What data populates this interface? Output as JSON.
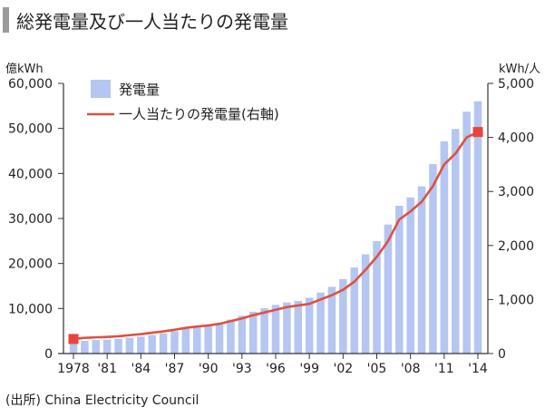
{
  "header": {
    "title": "総発電量及び一人当たりの発電量"
  },
  "source": "(出所) China Electricity Council",
  "colors": {
    "bar": "#b4c6f1",
    "line": "#e0503f",
    "marker": "#e8453a",
    "title_block": "#9a9a9a",
    "axis": "#333333"
  },
  "chart_data": {
    "type": "bar",
    "left_axis_label": "億kWh",
    "right_axis_label": "kWh/人",
    "left_ylim": [
      0,
      60000
    ],
    "right_ylim": [
      0,
      5000
    ],
    "left_ticks": [
      "0",
      "10,000",
      "20,000",
      "30,000",
      "40,000",
      "50,000",
      "60,000"
    ],
    "right_ticks": [
      "0",
      "1,000",
      "2,000",
      "3,000",
      "4,000",
      "5,000"
    ],
    "x_tick_labels": [
      {
        "year": 1978,
        "label": "1978"
      },
      {
        "year": 1981,
        "label": "'81"
      },
      {
        "year": 1984,
        "label": "'84"
      },
      {
        "year": 1987,
        "label": "'87"
      },
      {
        "year": 1990,
        "label": "'90"
      },
      {
        "year": 1993,
        "label": "'93"
      },
      {
        "year": 1996,
        "label": "'96"
      },
      {
        "year": 1999,
        "label": "'99"
      },
      {
        "year": 2002,
        "label": "'02"
      },
      {
        "year": 2005,
        "label": "'05"
      },
      {
        "year": 2008,
        "label": "'08"
      },
      {
        "year": 2011,
        "label": "'11"
      },
      {
        "year": 2014,
        "label": "'14"
      }
    ],
    "legend": {
      "bar_label": "発電量",
      "line_label": "一人当たりの発電量(右軸)"
    },
    "years": [
      1978,
      1979,
      1980,
      1981,
      1982,
      1983,
      1984,
      1985,
      1986,
      1987,
      1988,
      1989,
      1990,
      1991,
      1992,
      1993,
      1994,
      1995,
      1996,
      1997,
      1998,
      1999,
      2000,
      2001,
      2002,
      2003,
      2004,
      2005,
      2006,
      2007,
      2008,
      2009,
      2010,
      2011,
      2012,
      2013,
      2014
    ],
    "series": [
      {
        "name": "発電量",
        "axis": "left",
        "values": [
          2566,
          2820,
          3006,
          3093,
          3277,
          3514,
          3770,
          4107,
          4495,
          4973,
          5452,
          5848,
          6213,
          6775,
          7539,
          8395,
          9281,
          10069,
          10813,
          11356,
          11670,
          12393,
          13556,
          14808,
          16540,
          19106,
          22033,
          24975,
          28657,
          32816,
          34669,
          37147,
          42072,
          47130,
          49876,
          53721,
          56045
        ]
      },
      {
        "name": "一人当たりの発電量",
        "axis": "right",
        "values": [
          270,
          290,
          300,
          308,
          320,
          340,
          360,
          385,
          410,
          440,
          475,
          500,
          520,
          550,
          600,
          650,
          710,
          760,
          810,
          860,
          890,
          920,
          1000,
          1080,
          1180,
          1330,
          1550,
          1790,
          2080,
          2480,
          2630,
          2810,
          3100,
          3500,
          3700,
          4000,
          4100
        ]
      }
    ]
  }
}
